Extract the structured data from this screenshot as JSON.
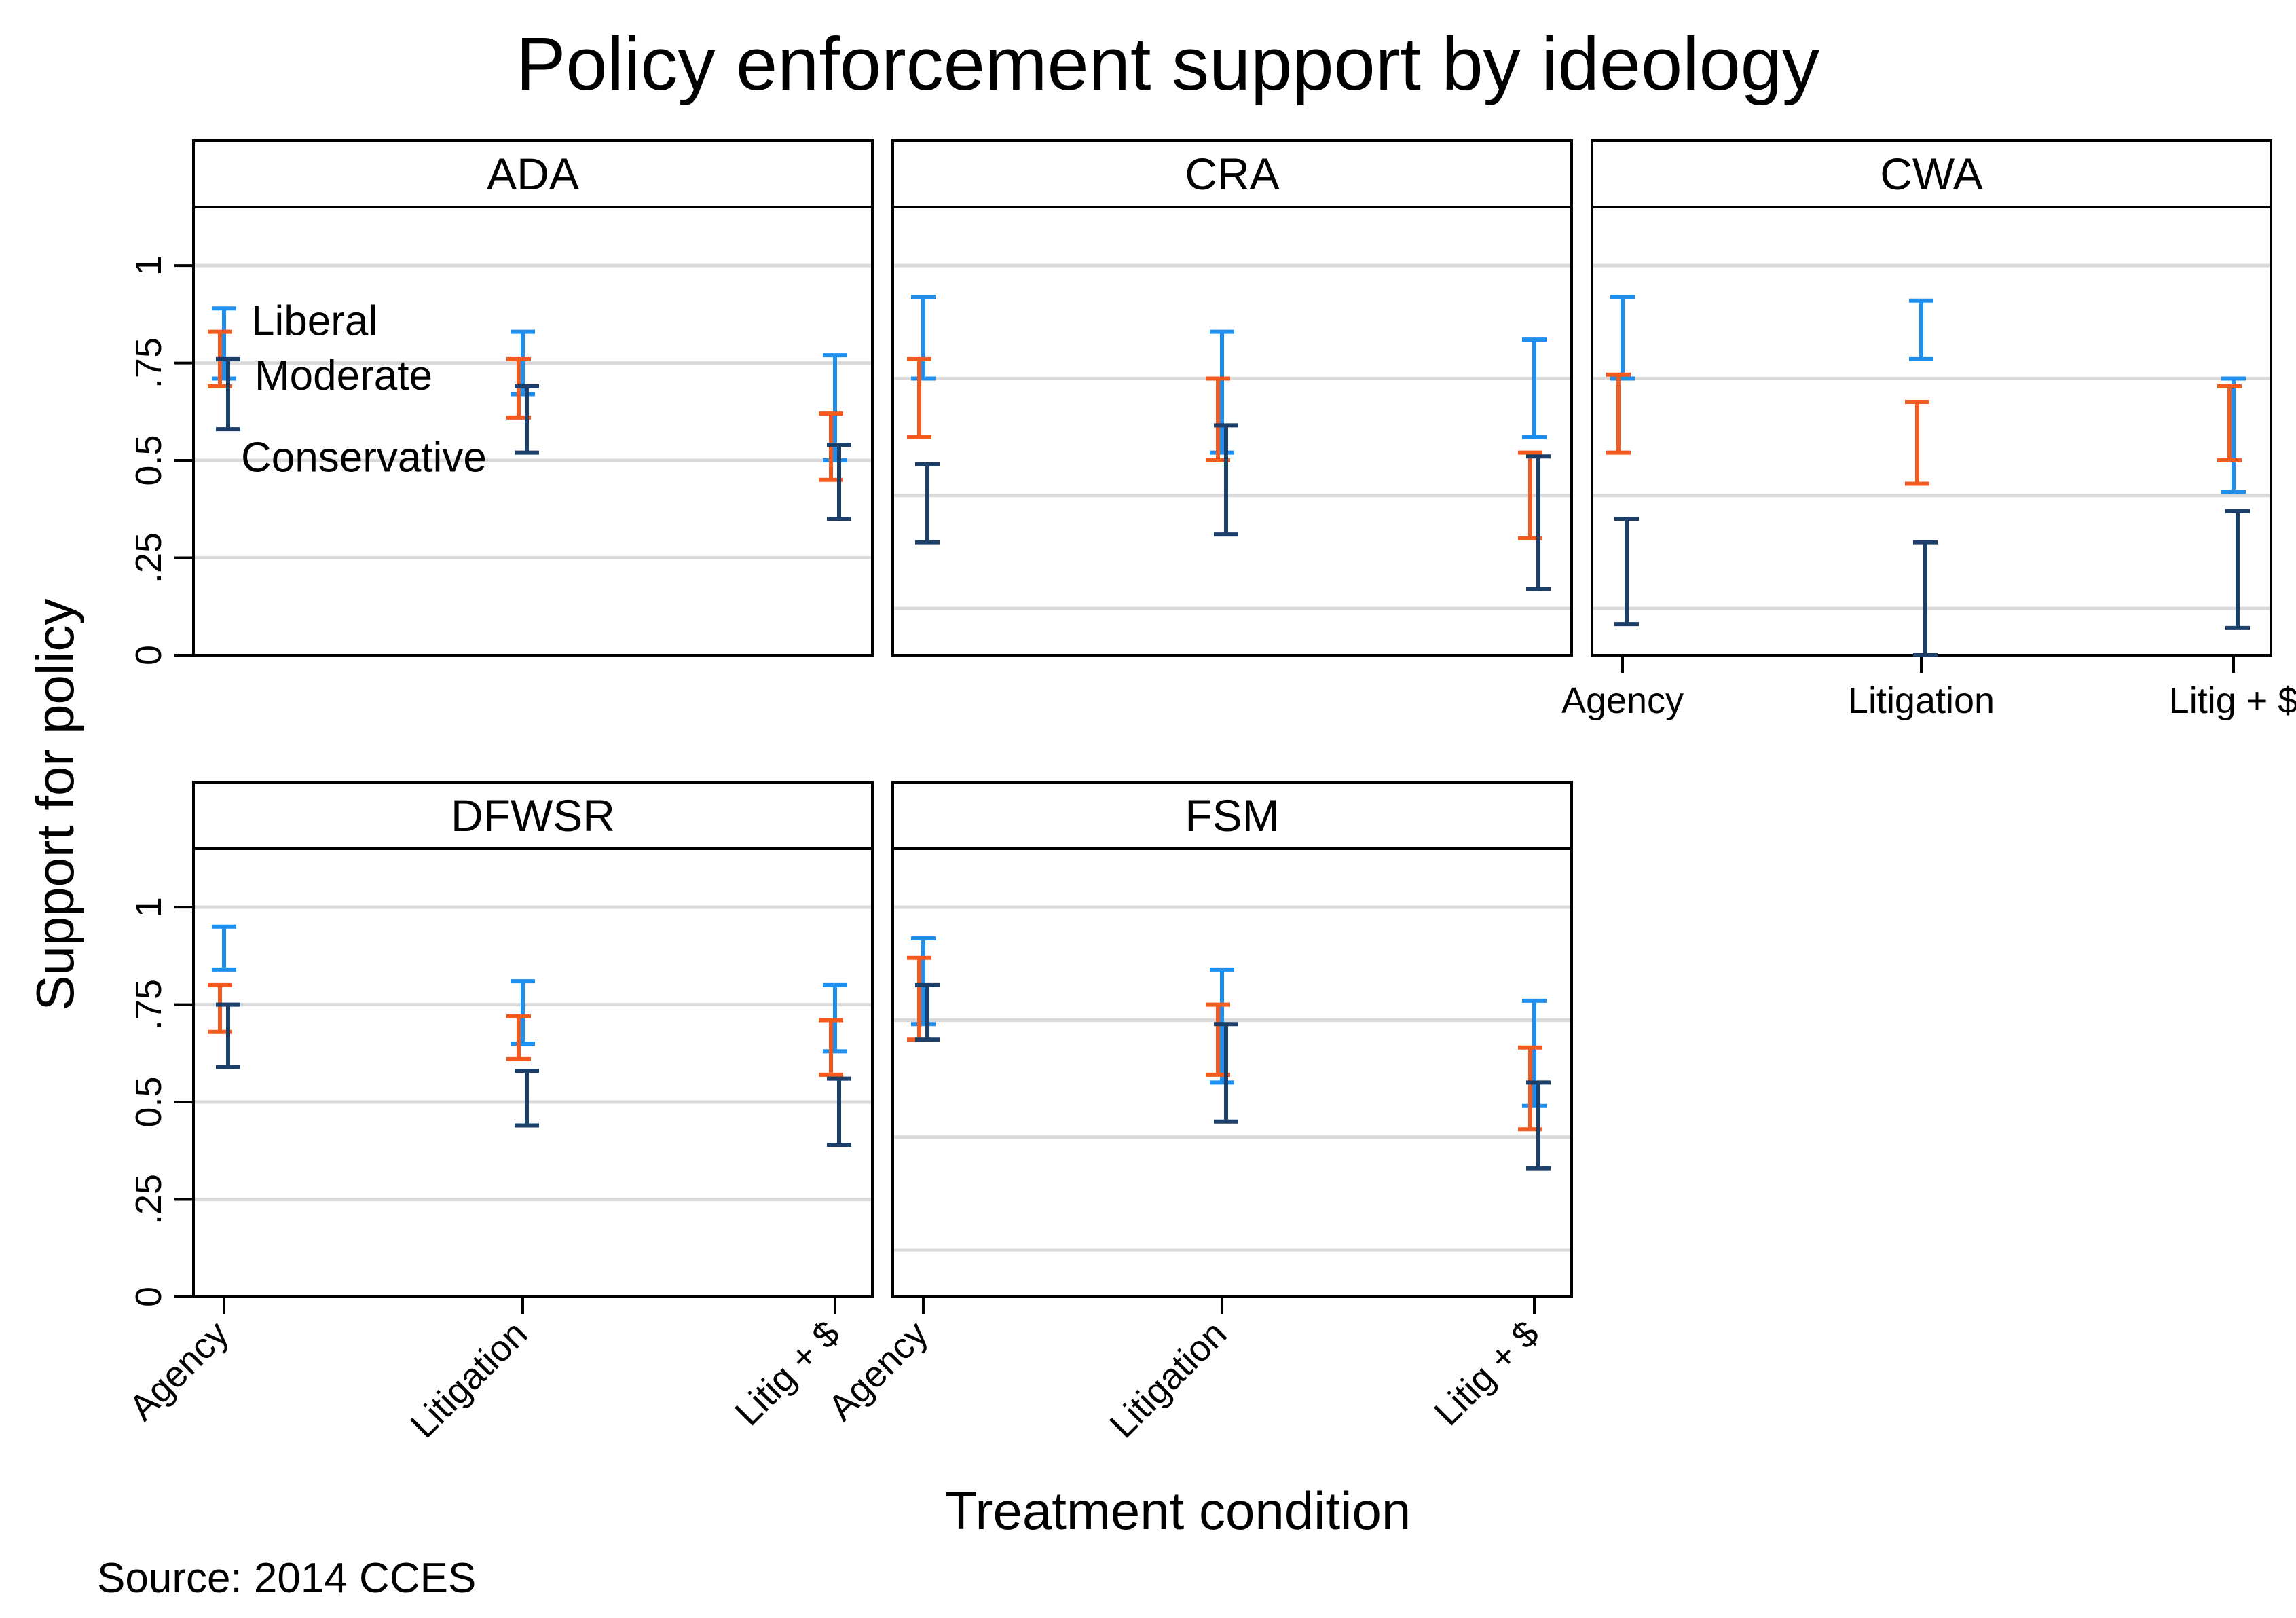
{
  "chart_data": {
    "type": "errorbar",
    "title": "Policy enforcement support by ideology",
    "xlabel": "Treatment condition",
    "ylabel": "Support for policy",
    "source": "Source: 2014 CCES",
    "ylim": [
      0,
      1.15
    ],
    "yticks": [
      {
        "value": 0,
        "label": "0"
      },
      {
        "value": 0.25,
        "label": ".25"
      },
      {
        "value": 0.5,
        "label": "0.5"
      },
      {
        "value": 0.75,
        "label": ".75"
      },
      {
        "value": 1,
        "label": "1"
      }
    ],
    "categories": [
      "Agency",
      "Litigation",
      "Litig + $"
    ],
    "series_colors": {
      "Liberal": "#1f8fef",
      "Moderate": "#f35a1f",
      "Conservative": "#1b3f68"
    },
    "legend": [
      {
        "name": "Liberal",
        "color": "#1f8fef"
      },
      {
        "name": "Moderate",
        "color": "#f35a1f"
      },
      {
        "name": "Conservative",
        "color": "#1b3f68"
      }
    ],
    "gridline_color": "#d9d9d9",
    "panels": [
      {
        "name": "ADA",
        "gridlines": [
          0.25,
          0.5,
          0.75,
          1
        ],
        "series": [
          {
            "name": "Liberal",
            "low": [
              0.71,
              0.67,
              0.5
            ],
            "high": [
              0.89,
              0.83,
              0.77
            ]
          },
          {
            "name": "Moderate",
            "low": [
              0.69,
              0.61,
              0.45
            ],
            "high": [
              0.83,
              0.76,
              0.62
            ]
          },
          {
            "name": "Conservative",
            "low": [
              0.58,
              0.52,
              0.35
            ],
            "high": [
              0.76,
              0.69,
              0.54
            ]
          }
        ]
      },
      {
        "name": "CRA",
        "gridlines": [
          0.12,
          0.41,
          0.71,
          1
        ],
        "series": [
          {
            "name": "Liberal",
            "low": [
              0.71,
              0.52,
              0.56
            ],
            "high": [
              0.92,
              0.83,
              0.81
            ]
          },
          {
            "name": "Moderate",
            "low": [
              0.56,
              0.5,
              0.3
            ],
            "high": [
              0.76,
              0.71,
              0.52
            ]
          },
          {
            "name": "Conservative",
            "low": [
              0.29,
              0.31,
              0.17
            ],
            "high": [
              0.49,
              0.59,
              0.51
            ]
          }
        ]
      },
      {
        "name": "CWA",
        "gridlines": [
          0.12,
          0.41,
          0.71,
          1
        ],
        "series": [
          {
            "name": "Liberal",
            "low": [
              0.71,
              0.76,
              0.42
            ],
            "high": [
              0.92,
              0.91,
              0.71
            ]
          },
          {
            "name": "Moderate",
            "low": [
              0.52,
              0.44,
              0.5
            ],
            "high": [
              0.72,
              0.65,
              0.69
            ]
          },
          {
            "name": "Conservative",
            "low": [
              0.08,
              0.0,
              0.07
            ],
            "high": [
              0.35,
              0.29,
              0.37
            ]
          }
        ]
      },
      {
        "name": "DFWSR",
        "gridlines": [
          0.25,
          0.5,
          0.75,
          1
        ],
        "series": [
          {
            "name": "Liberal",
            "low": [
              0.84,
              0.65,
              0.63
            ],
            "high": [
              0.95,
              0.81,
              0.8
            ]
          },
          {
            "name": "Moderate",
            "low": [
              0.68,
              0.61,
              0.57
            ],
            "high": [
              0.8,
              0.72,
              0.71
            ]
          },
          {
            "name": "Conservative",
            "low": [
              0.59,
              0.44,
              0.39
            ],
            "high": [
              0.75,
              0.58,
              0.56
            ]
          }
        ]
      },
      {
        "name": "FSM",
        "gridlines": [
          0.12,
          0.41,
          0.71,
          1
        ],
        "series": [
          {
            "name": "Liberal",
            "low": [
              0.7,
              0.55,
              0.49
            ],
            "high": [
              0.92,
              0.84,
              0.76
            ]
          },
          {
            "name": "Moderate",
            "low": [
              0.66,
              0.57,
              0.43
            ],
            "high": [
              0.87,
              0.75,
              0.64
            ]
          },
          {
            "name": "Conservative",
            "low": [
              0.66,
              0.45,
              0.33
            ],
            "high": [
              0.8,
              0.7,
              0.55
            ]
          }
        ]
      }
    ]
  }
}
